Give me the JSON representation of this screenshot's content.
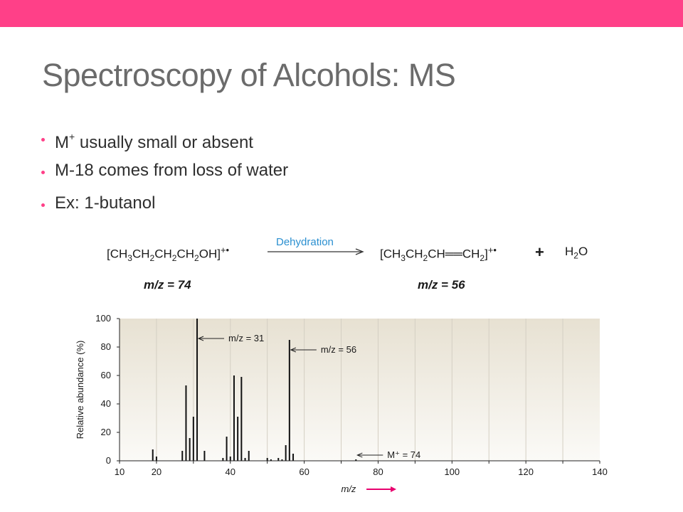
{
  "slide": {
    "title": "Spectroscopy of Alcohols: MS",
    "bullets": [
      {
        "main": "M",
        "sup": "+",
        "rest": " usually small or absent"
      },
      {
        "main": "M-18 comes from loss of water"
      },
      {
        "main": "Ex: 1-butanol"
      }
    ],
    "colors": {
      "accent": "#FF4088",
      "bullet": "#FF4088",
      "title": "#6b6b6b",
      "text": "#2f2f2f",
      "arrow_text": "#2a8fd0",
      "chart_bg_top": "#e7e1d2",
      "chart_bg_bottom": "#fbfaf7",
      "axis_arrow": "#e8006e"
    }
  },
  "reaction": {
    "reactant": {
      "p1": "[CH",
      "s1": "3",
      "p2": "CH",
      "s2": "2",
      "p3": "CH",
      "s3": "2",
      "p4": "CH",
      "s4": "2",
      "p5": "OH]",
      "sup": "+•"
    },
    "arrow_label": "Dehydration",
    "product": {
      "p1": "[CH",
      "s1": "3",
      "p2": "CH",
      "s2": "2",
      "p3": "CH══CH",
      "s3": "2",
      "p4": "]",
      "sup": "+•"
    },
    "plus": "+",
    "water": {
      "p1": "H",
      "s1": "2",
      "p2": "O"
    },
    "reactant_mz": "m/z = 74",
    "product_mz": "m/z = 56"
  },
  "chart_data": {
    "type": "bar",
    "xlabel": "m/z",
    "ylabel": "Relative abundance (%)",
    "xlim": [
      10,
      140
    ],
    "ylim": [
      0,
      100
    ],
    "x_ticks": [
      10,
      20,
      40,
      60,
      80,
      100,
      120,
      140
    ],
    "y_ticks": [
      0,
      20,
      40,
      60,
      80,
      100
    ],
    "peaks": [
      {
        "x": 19,
        "y": 8
      },
      {
        "x": 20,
        "y": 3
      },
      {
        "x": 27,
        "y": 7
      },
      {
        "x": 28,
        "y": 53
      },
      {
        "x": 29,
        "y": 16
      },
      {
        "x": 30,
        "y": 31
      },
      {
        "x": 31,
        "y": 100
      },
      {
        "x": 33,
        "y": 7
      },
      {
        "x": 38,
        "y": 2
      },
      {
        "x": 39,
        "y": 17
      },
      {
        "x": 40,
        "y": 3
      },
      {
        "x": 41,
        "y": 60
      },
      {
        "x": 42,
        "y": 31
      },
      {
        "x": 43,
        "y": 59
      },
      {
        "x": 44,
        "y": 2
      },
      {
        "x": 45,
        "y": 7
      },
      {
        "x": 50,
        "y": 2
      },
      {
        "x": 51,
        "y": 1
      },
      {
        "x": 53,
        "y": 2
      },
      {
        "x": 54,
        "y": 1
      },
      {
        "x": 55,
        "y": 11
      },
      {
        "x": 56,
        "y": 85
      },
      {
        "x": 57,
        "y": 5
      },
      {
        "x": 74,
        "y": 1
      }
    ],
    "annotations": [
      {
        "x": 31,
        "y": 86,
        "label": "m/z = 31"
      },
      {
        "x": 56,
        "y": 78,
        "label": "m/z = 56"
      },
      {
        "x": 74,
        "y": 4,
        "label": "M⁺ = 74"
      }
    ],
    "grid": "vertical lines every 10",
    "background": "gradient"
  }
}
